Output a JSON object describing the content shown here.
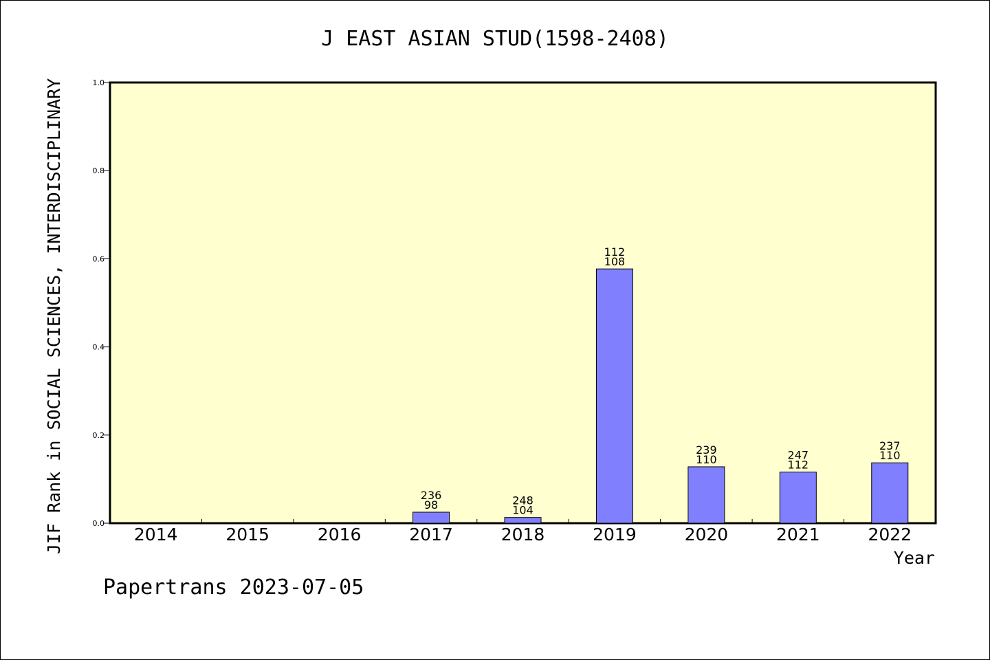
{
  "chart_data": {
    "type": "bar",
    "title": "J EAST ASIAN STUD(1598-2408)",
    "xlabel": "Year",
    "ylabel": "JIF Rank in SOCIAL SCIENCES, INTERDISCIPLINARY",
    "ylim": [
      0,
      1.0
    ],
    "yticks": [
      "0.0",
      "0.2",
      "0.4",
      "0.6",
      "0.8",
      "1.0"
    ],
    "categories": [
      "2014",
      "2015",
      "2016",
      "2017",
      "2018",
      "2019",
      "2020",
      "2021",
      "2022"
    ],
    "values": [
      null,
      null,
      null,
      0.025,
      0.013,
      0.577,
      0.128,
      0.116,
      0.137
    ],
    "labels_top": [
      "",
      "",
      "",
      "236",
      "248",
      "112",
      "239",
      "247",
      "237"
    ],
    "labels_bottom": [
      "",
      "",
      "",
      "98",
      "104",
      "108",
      "110",
      "112",
      "110"
    ],
    "grid": false,
    "colors": {
      "plot_bg": "#ffffd0",
      "bar": "#8080ff",
      "bar_edge": "#000000"
    }
  },
  "footer": "Papertrans 2023-07-05"
}
